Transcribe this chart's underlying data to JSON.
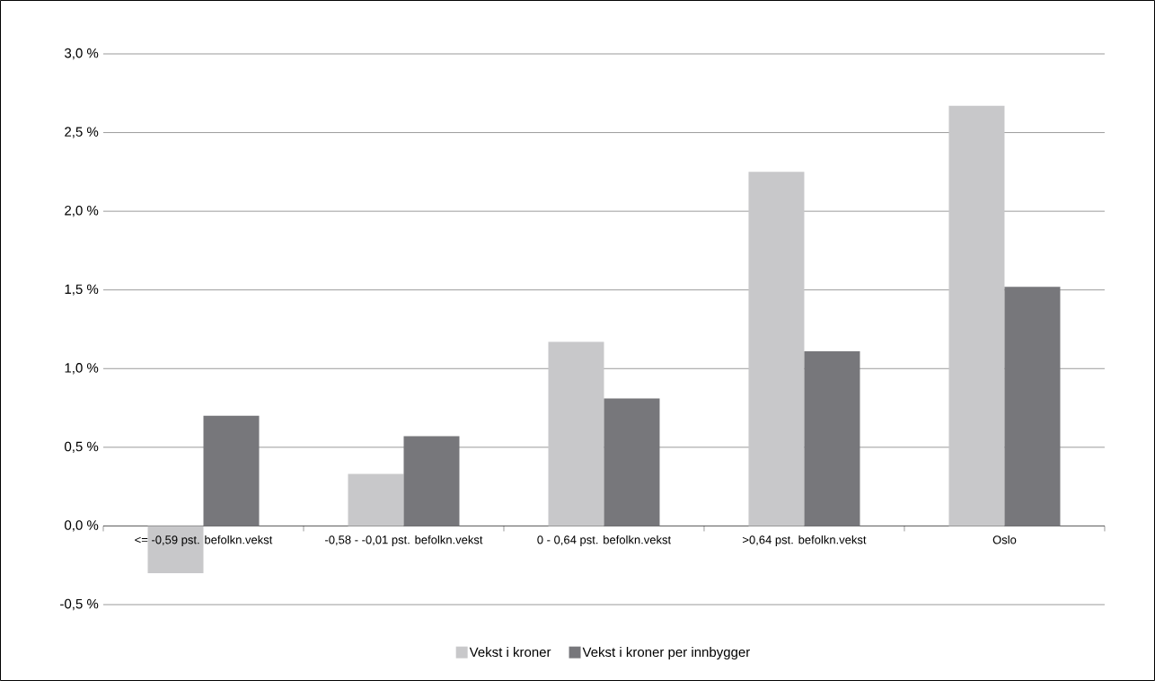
{
  "chart_data": {
    "type": "bar",
    "categories": [
      "<= -0,59 pst. befolkn.vekst",
      "-0,58 - -0,01 pst. befolkn.vekst",
      "0 - 0,64 pst. befolkn.vekst",
      ">0,64 pst. befolkn.vekst",
      "Oslo"
    ],
    "series": [
      {
        "name": "Vekst i kroner",
        "color": "#c8c8ca",
        "values": [
          -0.3,
          0.33,
          1.17,
          2.25,
          2.67
        ]
      },
      {
        "name": "Vekst i kroner per innbygger",
        "color": "#77777b",
        "values": [
          0.7,
          0.57,
          0.81,
          1.11,
          1.52
        ]
      }
    ],
    "ylim": [
      -0.5,
      3.0
    ],
    "yticks": [
      {
        "value": -0.5,
        "label": "-0,5 %"
      },
      {
        "value": 0.0,
        "label": "0,0 %"
      },
      {
        "value": 0.5,
        "label": "0,5 %"
      },
      {
        "value": 1.0,
        "label": "1,0 %"
      },
      {
        "value": 1.5,
        "label": "1,5 %"
      },
      {
        "value": 2.0,
        "label": "2,0 %"
      },
      {
        "value": 2.5,
        "label": "2,5 %"
      },
      {
        "value": 3.0,
        "label": "3,0 %"
      }
    ],
    "grid": "y",
    "legend": "bottom"
  }
}
